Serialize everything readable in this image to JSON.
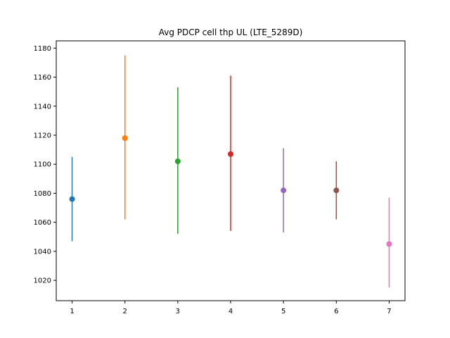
{
  "chart_data": {
    "type": "scatter",
    "title": "Avg PDCP cell thp UL (LTE_5289D)",
    "xlabel": "",
    "ylabel": "",
    "xlim": [
      0.7,
      7.3
    ],
    "ylim": [
      1006,
      1185
    ],
    "x_ticks": [
      1,
      2,
      3,
      4,
      5,
      6,
      7
    ],
    "y_ticks": [
      1020,
      1040,
      1060,
      1080,
      1100,
      1120,
      1140,
      1160,
      1180
    ],
    "grid": false,
    "points": [
      {
        "x": 1,
        "y": 1076,
        "low": 1047,
        "high": 1105,
        "color": "#1f77b4"
      },
      {
        "x": 2,
        "y": 1118,
        "low": 1062,
        "high": 1175,
        "color": "#ff7f0e"
      },
      {
        "x": 3,
        "y": 1102,
        "low": 1052,
        "high": 1153,
        "color": "#2ca02c"
      },
      {
        "x": 4,
        "y": 1107,
        "low": 1054,
        "high": 1161,
        "color": "#d62728"
      },
      {
        "x": 5,
        "y": 1082,
        "low": 1053,
        "high": 1111,
        "color": "#9467bd"
      },
      {
        "x": 6,
        "y": 1082,
        "low": 1062,
        "high": 1102,
        "color": "#8c564b"
      },
      {
        "x": 7,
        "y": 1045,
        "low": 1015,
        "high": 1077,
        "color": "#e377c2"
      }
    ]
  }
}
